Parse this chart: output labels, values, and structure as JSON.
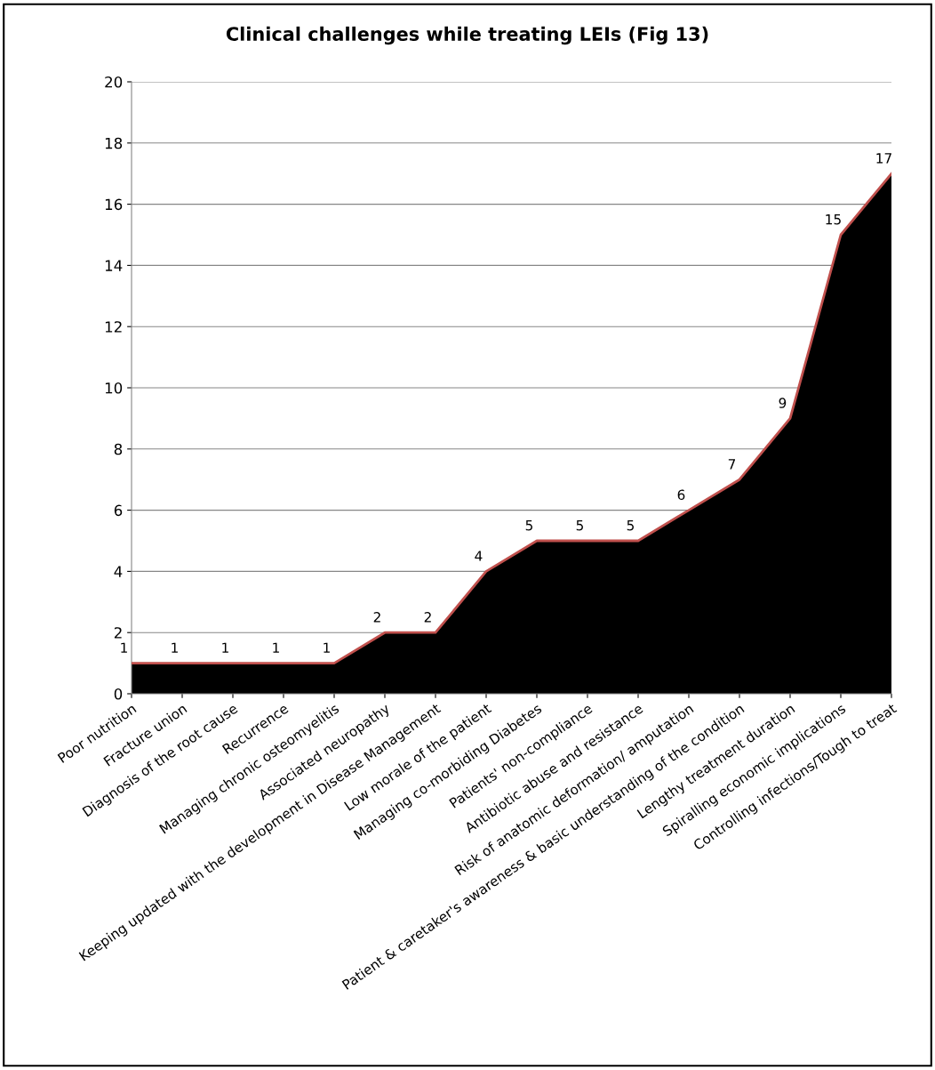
{
  "chart_data": {
    "type": "area",
    "title": "Clinical challenges while treating LEIs (Fig 13)",
    "categories": [
      "Poor nutrition",
      "Fracture union",
      "Diagnosis of the root cause",
      "Recurrence",
      "Managing chronic osteomyelitis",
      "Associated neuropathy",
      "Keeping updated with the development in Disease Management",
      "Low morale of the patient",
      "Managing co-morbiding Diabetes",
      "Patients' non-compliance",
      "Antibiotic abuse and resistance",
      "Risk of anatomic deformation/ amputation",
      "Patient & caretaker's awareness & basic understanding of the condition",
      "Lengthy treatment duration",
      "Spiralling economic implications",
      "Controlling infections/Tough to treat"
    ],
    "series": [
      {
        "color": "#000000",
        "values": [
          1,
          1,
          1,
          1,
          1,
          2,
          2,
          4,
          5,
          5,
          5,
          6,
          7,
          9,
          15,
          17
        ]
      }
    ],
    "ylim": [
      0,
      20
    ],
    "yticks": [
      0,
      2,
      4,
      6,
      8,
      10,
      12,
      14,
      16,
      18,
      20
    ],
    "grid": "y",
    "data_labels": true
  }
}
